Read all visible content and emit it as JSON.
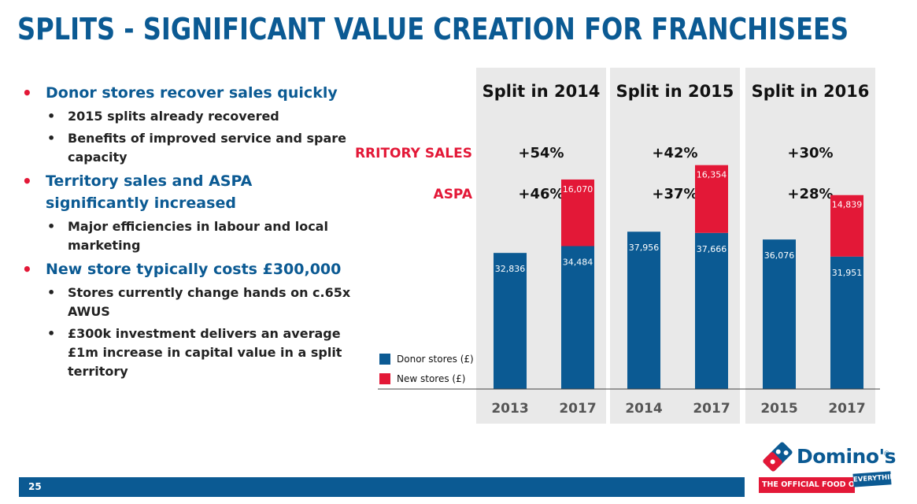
{
  "title": "SPLITS - SIGNIFICANT VALUE CREATION FOR FRANCHISEES",
  "bullets": [
    {
      "text": "Donor stores recover sales quickly",
      "sub": [
        "2015 splits already recovered",
        "Benefits of improved service and spare capacity"
      ]
    },
    {
      "text": "Territory sales and ASPA significantly increased",
      "sub": [
        "Major efficiencies in labour and local marketing"
      ]
    },
    {
      "text": "New store typically costs £300,000",
      "sub": [
        "Stores currently change hands on c.65x AWUS",
        "£300k investment delivers an average £1m increase in capital value in a split territory"
      ]
    }
  ],
  "chart_data": {
    "type": "bar",
    "stacked": true,
    "row_labels": [
      "TERRITORY SALES",
      "ASPA"
    ],
    "legend": [
      "Donor stores (£)",
      "New stores (£)"
    ],
    "colors": {
      "donor": "#0b5a93",
      "new": "#e31837"
    },
    "ylim": [
      0,
      60000
    ],
    "panels": [
      {
        "title": "Split in 2014",
        "territory_sales": "+54%",
        "aspa": "+46%",
        "categories": [
          "2013",
          "2017"
        ],
        "series": [
          {
            "name": "Donor stores (£)",
            "values": [
              32836,
              34484
            ],
            "labels": [
              "32,836",
              "34,484"
            ]
          },
          {
            "name": "New stores (£)",
            "values": [
              0,
              16070
            ],
            "labels": [
              "",
              "16,070"
            ]
          }
        ]
      },
      {
        "title": "Split in 2015",
        "territory_sales": "+42%",
        "aspa": "+37%",
        "categories": [
          "2014",
          "2017"
        ],
        "series": [
          {
            "name": "Donor stores (£)",
            "values": [
              37956,
              37666
            ],
            "labels": [
              "37,956",
              "37,666"
            ]
          },
          {
            "name": "New stores (£)",
            "values": [
              0,
              16354
            ],
            "labels": [
              "",
              "16,354"
            ]
          }
        ]
      },
      {
        "title": "Split in 2016",
        "territory_sales": "+30%",
        "aspa": "+28%",
        "categories": [
          "2015",
          "2017"
        ],
        "series": [
          {
            "name": "Donor stores (£)",
            "values": [
              36076,
              31951
            ],
            "labels": [
              "36,076",
              "31,951"
            ]
          },
          {
            "name": "New stores (£)",
            "values": [
              0,
              14839
            ],
            "labels": [
              "",
              "14,839"
            ]
          }
        ]
      }
    ]
  },
  "footer": {
    "page_number": "25"
  },
  "logo": {
    "name": "Domino's",
    "reg": "®",
    "tagline": "THE OFFICIAL FOOD OF",
    "tag": "EVERYTHING"
  }
}
